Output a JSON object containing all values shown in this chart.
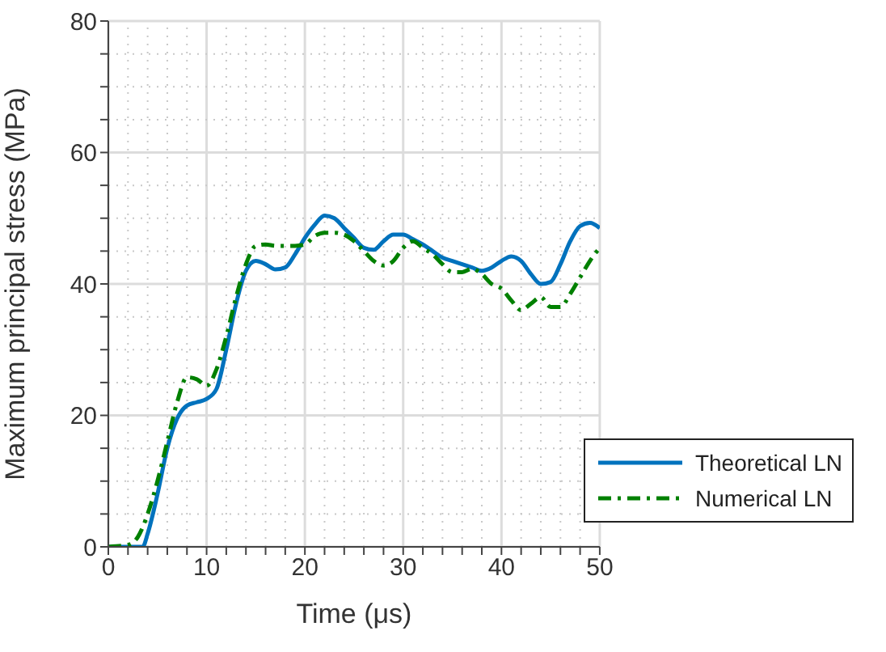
{
  "chart_data": {
    "type": "line",
    "xlabel": "Time (μs)",
    "ylabel": "Maximum principal stress (MPa)",
    "xlim": [
      0,
      50
    ],
    "ylim": [
      0,
      80
    ],
    "xticks": [
      0,
      {
        "value": 2,
        "label": null
      },
      {
        "value": 4,
        "label": null
      },
      {
        "value": 6,
        "label": null
      },
      {
        "value": 8,
        "label": null
      },
      10,
      {
        "value": 12,
        "label": null
      },
      {
        "value": 14,
        "label": null
      },
      {
        "value": 16,
        "label": null
      },
      {
        "value": 18,
        "label": null
      },
      20,
      {
        "value": 22,
        "label": null
      },
      {
        "value": 24,
        "label": null
      },
      {
        "value": 26,
        "label": null
      },
      {
        "value": 28,
        "label": null
      },
      30,
      {
        "value": 32,
        "label": null
      },
      {
        "value": 34,
        "label": null
      },
      {
        "value": 36,
        "label": null
      },
      {
        "value": 38,
        "label": null
      },
      40,
      {
        "value": 42,
        "label": null
      },
      {
        "value": 44,
        "label": null
      },
      {
        "value": 46,
        "label": null
      },
      {
        "value": 48,
        "label": null
      },
      50
    ],
    "yticks": [
      0,
      {
        "value": 5,
        "label": null
      },
      {
        "value": 10,
        "label": null
      },
      {
        "value": 15,
        "label": null
      },
      20,
      {
        "value": 25,
        "label": null
      },
      {
        "value": 30,
        "label": null
      },
      {
        "value": 35,
        "label": null
      },
      40,
      {
        "value": 45,
        "label": null
      },
      {
        "value": 50,
        "label": null
      },
      {
        "value": 55,
        "label": null
      },
      60,
      {
        "value": 65,
        "label": null
      },
      {
        "value": 70,
        "label": null
      },
      {
        "value": 75,
        "label": null
      },
      80
    ],
    "grid": true,
    "legend": "bottom right",
    "marker": "none",
    "x": [
      0,
      2,
      3,
      3.5,
      4,
      5,
      6,
      7,
      8,
      9,
      10,
      11,
      12,
      13,
      14,
      15,
      16,
      17,
      18,
      19,
      20,
      21,
      22,
      23,
      24,
      25,
      26,
      27,
      28,
      29,
      30,
      31,
      32,
      33,
      34,
      35,
      36,
      37,
      38,
      39,
      40,
      41,
      42,
      43,
      44,
      45,
      46,
      47,
      48,
      49,
      50
    ],
    "series": [
      {
        "name": "Theoretical LN",
        "color": "#0072bd",
        "line_style": "solid",
        "values": [
          0,
          0,
          0,
          0,
          2,
          8,
          15,
          19.5,
          21.5,
          22,
          22.5,
          24,
          30,
          37,
          42,
          43.5,
          43,
          42.2,
          42.5,
          44.5,
          47,
          49,
          50.4,
          50,
          48.5,
          47,
          45.5,
          45.2,
          46.5,
          47.5,
          47.5,
          46.8,
          46,
          45,
          44,
          43.5,
          43,
          42.5,
          42,
          42.5,
          43.5,
          44.2,
          43.5,
          41.5,
          40,
          40.3,
          43,
          46.5,
          48.8,
          49.3,
          48.5
        ]
      },
      {
        "name": "Numerical LN",
        "color": "#008000",
        "line_style": "dashed",
        "values": [
          0,
          0.3,
          1.5,
          3,
          5,
          10,
          16,
          22,
          25.8,
          25.5,
          24.5,
          27,
          32,
          38,
          43,
          45.8,
          46,
          45.8,
          45.8,
          45.8,
          46,
          47.3,
          47.8,
          47.8,
          47.5,
          46.5,
          45,
          43.5,
          42.8,
          43.5,
          45.5,
          46.5,
          45.5,
          44.5,
          43,
          41.8,
          41.8,
          42.3,
          41.5,
          40,
          39.3,
          37.5,
          36,
          37,
          38,
          36.5,
          36.5,
          38.5,
          41,
          43.5,
          45.5
        ]
      }
    ]
  }
}
